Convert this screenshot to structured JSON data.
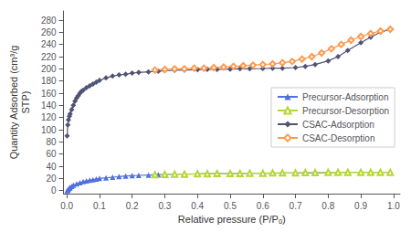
{
  "chart_data": {
    "type": "line",
    "xlabel": "Relative pressure (P/Pₒ)",
    "ylabel": "Quantity Adsorbed (cm³/g\nSTP)",
    "xlim": [
      -0.01,
      1.02
    ],
    "ylim": [
      -5,
      295
    ],
    "xticks": [
      {
        "value": 0.0,
        "label": "0.0"
      },
      0.1,
      0.2,
      0.3,
      0.4,
      0.5,
      0.6,
      0.7,
      0.8,
      0.9,
      {
        "value": 1.0,
        "label": "1.0"
      }
    ],
    "yticks": [
      0,
      20,
      40,
      60,
      80,
      100,
      120,
      140,
      160,
      180,
      200,
      220,
      240,
      260,
      280
    ],
    "grid": false,
    "legend": "right",
    "series": [
      {
        "name": "Precursor-Adsorption",
        "marker": "triangle",
        "line_style": "solid",
        "x": [
          0.001,
          0.003,
          0.005,
          0.008,
          0.01,
          0.015,
          0.02,
          0.03,
          0.04,
          0.05,
          0.06,
          0.07,
          0.08,
          0.09,
          0.1,
          0.12,
          0.14,
          0.16,
          0.18,
          0.2,
          0.22,
          0.25,
          0.28,
          0.3,
          0.33,
          0.36,
          0.4,
          0.43,
          0.46,
          0.5,
          0.53,
          0.56,
          0.6,
          0.63,
          0.66,
          0.7,
          0.73,
          0.76,
          0.8,
          0.83,
          0.86,
          0.9,
          0.93,
          0.96,
          0.99
        ],
        "values": [
          0,
          1,
          2,
          4,
          5,
          7,
          9,
          11,
          13,
          15,
          16,
          17,
          18,
          19,
          20,
          21,
          22,
          23,
          24,
          24.5,
          25,
          25.5,
          26,
          26.5,
          27,
          27,
          27.5,
          28,
          28,
          28,
          28,
          28.5,
          28.5,
          28.5,
          29,
          29,
          29,
          29,
          29.5,
          29.5,
          30,
          30,
          30,
          30,
          30
        ]
      },
      {
        "name": "Precursor-Desorption",
        "marker": "triangle-open",
        "line_style": "solid",
        "x": [
          0.99,
          0.96,
          0.93,
          0.9,
          0.86,
          0.83,
          0.8,
          0.76,
          0.73,
          0.7,
          0.66,
          0.63,
          0.6,
          0.56,
          0.53,
          0.5,
          0.46,
          0.43,
          0.4,
          0.36,
          0.33,
          0.3,
          0.27
        ],
        "values": [
          30,
          30,
          30,
          30,
          30,
          30,
          30,
          29.5,
          29.5,
          29,
          29,
          29,
          28.5,
          28.5,
          28,
          28,
          28,
          27.5,
          27.5,
          27,
          27,
          26.5,
          26
        ]
      },
      {
        "name": "CSAC-Adsorption",
        "marker": "diamond",
        "line_style": "solid",
        "x": [
          0.001,
          0.003,
          0.005,
          0.008,
          0.01,
          0.015,
          0.02,
          0.025,
          0.03,
          0.035,
          0.04,
          0.045,
          0.05,
          0.06,
          0.07,
          0.08,
          0.09,
          0.1,
          0.12,
          0.14,
          0.16,
          0.18,
          0.2,
          0.22,
          0.25,
          0.28,
          0.3,
          0.33,
          0.36,
          0.4,
          0.43,
          0.46,
          0.5,
          0.53,
          0.56,
          0.6,
          0.63,
          0.66,
          0.7,
          0.73,
          0.76,
          0.8,
          0.83,
          0.86,
          0.9,
          0.93,
          0.96,
          0.99
        ],
        "values": [
          90,
          108,
          116,
          122,
          126,
          133,
          140,
          147,
          152,
          156,
          160,
          163,
          165,
          169,
          172,
          175,
          178,
          181,
          185,
          188,
          190,
          191,
          193,
          194,
          195,
          196,
          197,
          197.5,
          198,
          198.5,
          199,
          199,
          199.5,
          200,
          200,
          200.5,
          201,
          201,
          202,
          204,
          207,
          213,
          220,
          230,
          243,
          252,
          260,
          265
        ]
      },
      {
        "name": "CSAC-Desorption",
        "marker": "diamond-open",
        "line_style": "solid",
        "x": [
          0.99,
          0.96,
          0.93,
          0.9,
          0.87,
          0.84,
          0.81,
          0.78,
          0.75,
          0.72,
          0.69,
          0.66,
          0.63,
          0.6,
          0.57,
          0.54,
          0.51,
          0.48,
          0.45,
          0.42,
          0.39,
          0.36,
          0.33,
          0.3,
          0.27
        ],
        "values": [
          265,
          262,
          258,
          253,
          247,
          240,
          233,
          226,
          220,
          216,
          212,
          210,
          208,
          207,
          206,
          205,
          204,
          203,
          202,
          201,
          201,
          200,
          200,
          199,
          198
        ]
      }
    ]
  }
}
